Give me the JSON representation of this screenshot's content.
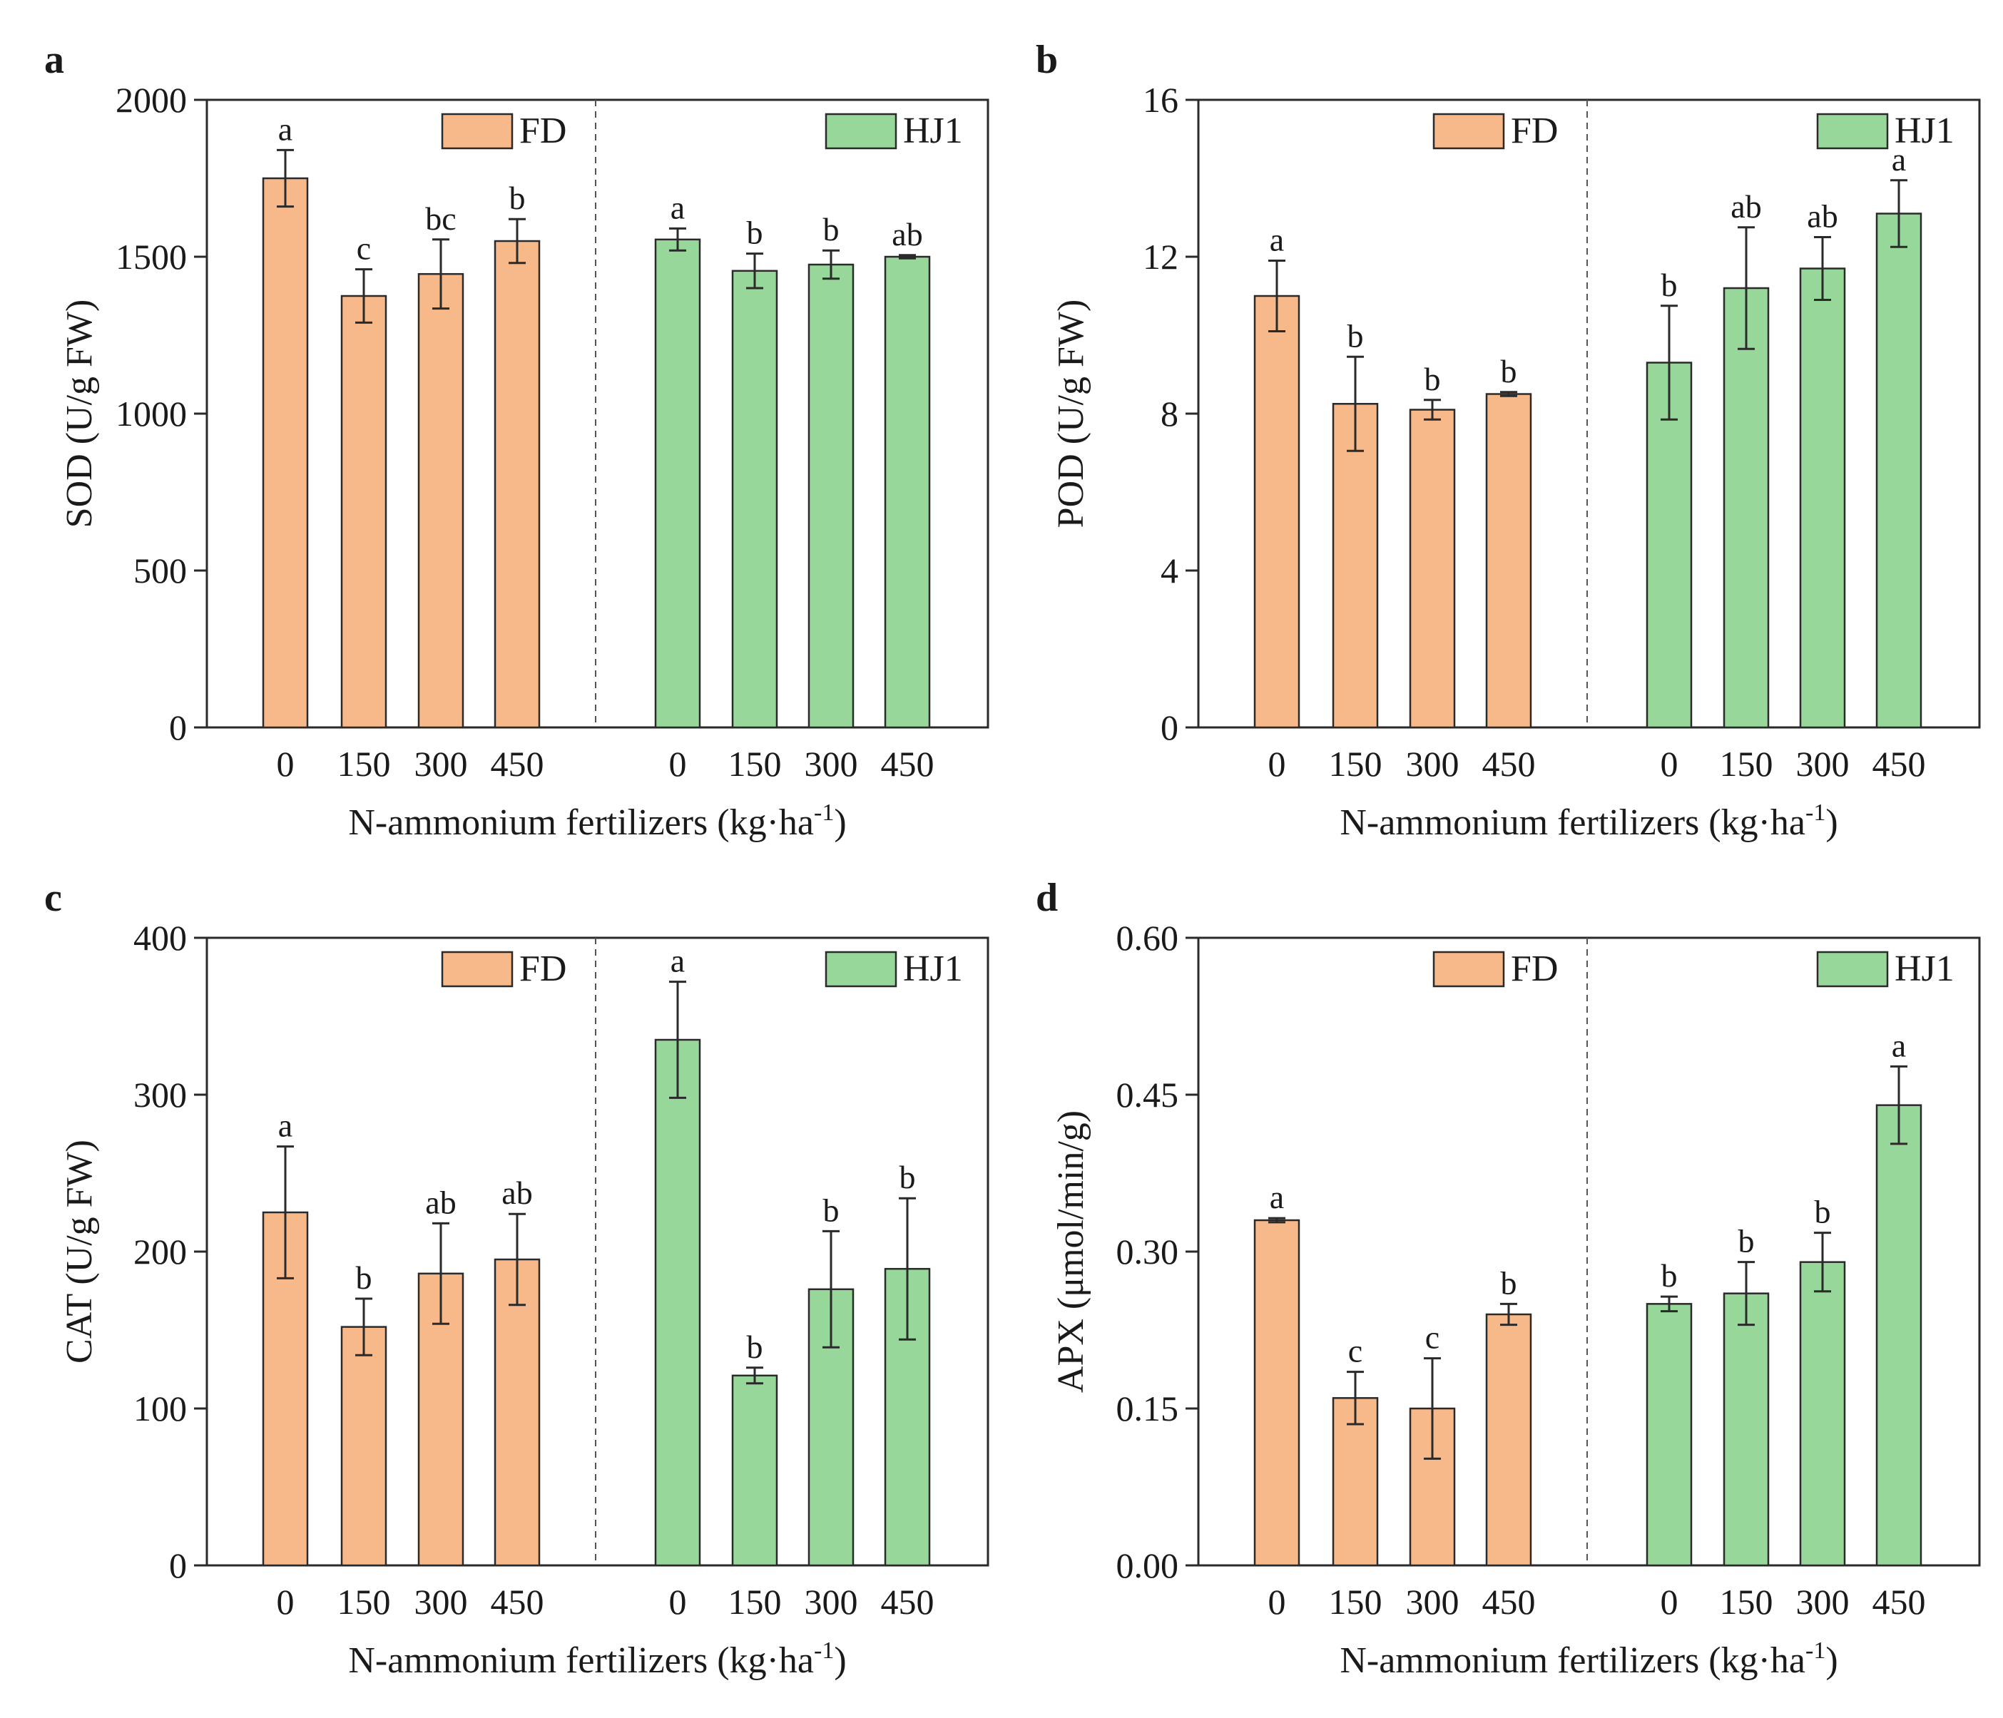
{
  "colors": {
    "FD": "#f7b88a",
    "HJ1": "#97d89a",
    "bar_stroke": "#2a2a2a",
    "axis": "#2a2a2a",
    "divider": "#555555"
  },
  "chart_data": [
    {
      "type": "bar",
      "panel": "a",
      "title": "",
      "ylabel": "SOD (U/g FW)",
      "xlabel": "N-ammonium fertilizers (kg·ha",
      "xlabel_sup": "-1",
      "xlabel_end": ")",
      "ylim": [
        0,
        2000
      ],
      "yticks": [
        0,
        500,
        1000,
        1500,
        2000
      ],
      "ytick_labels": [
        "0",
        "500",
        "1000",
        "1500",
        "2000"
      ],
      "categories": [
        "0",
        "150",
        "300",
        "450"
      ],
      "legend_position": "top, one entry per group",
      "series": [
        {
          "name": "FD",
          "values": [
            1750,
            1375,
            1445,
            1550
          ],
          "errors": [
            90,
            85,
            110,
            70
          ],
          "letters": [
            "a",
            "c",
            "bc",
            "b"
          ]
        },
        {
          "name": "HJ1",
          "values": [
            1555,
            1455,
            1475,
            1500
          ],
          "errors": [
            35,
            55,
            45,
            5
          ],
          "letters": [
            "a",
            "b",
            "b",
            "ab"
          ]
        }
      ]
    },
    {
      "type": "bar",
      "panel": "b",
      "title": "",
      "ylabel": "POD (U/g FW)",
      "xlabel": "N-ammonium fertilizers (kg·ha",
      "xlabel_sup": "-1",
      "xlabel_end": ")",
      "ylim": [
        0,
        16
      ],
      "yticks": [
        0,
        4,
        8,
        12,
        16
      ],
      "ytick_labels": [
        "0",
        "4",
        "8",
        "12",
        "16"
      ],
      "categories": [
        "0",
        "150",
        "300",
        "450"
      ],
      "legend_position": "top, one entry per group",
      "series": [
        {
          "name": "FD",
          "values": [
            11.0,
            8.25,
            8.1,
            8.5
          ],
          "errors": [
            0.9,
            1.2,
            0.25,
            0.05
          ],
          "letters": [
            "a",
            "b",
            "b",
            "b"
          ]
        },
        {
          "name": "HJ1",
          "values": [
            9.3,
            11.2,
            11.7,
            13.1
          ],
          "errors": [
            1.45,
            1.55,
            0.8,
            0.85
          ],
          "letters": [
            "b",
            "ab",
            "ab",
            "a"
          ]
        }
      ]
    },
    {
      "type": "bar",
      "panel": "c",
      "title": "",
      "ylabel": "CAT (U/g FW)",
      "xlabel": "N-ammonium fertilizers (kg·ha",
      "xlabel_sup": "-1",
      "xlabel_end": ")",
      "ylim": [
        0,
        400
      ],
      "yticks": [
        0,
        100,
        200,
        300,
        400
      ],
      "ytick_labels": [
        "0",
        "100",
        "200",
        "300",
        "400"
      ],
      "categories": [
        "0",
        "150",
        "300",
        "450"
      ],
      "legend_position": "top, one entry per group",
      "series": [
        {
          "name": "FD",
          "values": [
            225,
            152,
            186,
            195
          ],
          "errors": [
            42,
            18,
            32,
            29
          ],
          "letters": [
            "a",
            "b",
            "ab",
            "ab"
          ]
        },
        {
          "name": "HJ1",
          "values": [
            335,
            121,
            176,
            189
          ],
          "errors": [
            37,
            5,
            37,
            45
          ],
          "letters": [
            "a",
            "b",
            "b",
            "b"
          ]
        }
      ]
    },
    {
      "type": "bar",
      "panel": "d",
      "title": "",
      "ylabel": "APX (μmol/min/g)",
      "xlabel": "N-ammonium fertilizers (kg·ha",
      "xlabel_sup": "-1",
      "xlabel_end": ")",
      "ylim": [
        0,
        0.6
      ],
      "yticks": [
        0,
        0.15,
        0.3,
        0.45,
        0.6
      ],
      "ytick_labels": [
        "0.00",
        "0.15",
        "0.30",
        "0.45",
        "0.60"
      ],
      "categories": [
        "0",
        "150",
        "300",
        "450"
      ],
      "legend_position": "top, one entry per group",
      "series": [
        {
          "name": "FD",
          "values": [
            0.33,
            0.16,
            0.15,
            0.24
          ],
          "errors": [
            0.002,
            0.025,
            0.048,
            0.01
          ],
          "letters": [
            "a",
            "c",
            "c",
            "b"
          ]
        },
        {
          "name": "HJ1",
          "values": [
            0.25,
            0.26,
            0.29,
            0.44
          ],
          "errors": [
            0.007,
            0.03,
            0.028,
            0.037
          ],
          "letters": [
            "b",
            "b",
            "b",
            "a"
          ]
        }
      ]
    }
  ]
}
